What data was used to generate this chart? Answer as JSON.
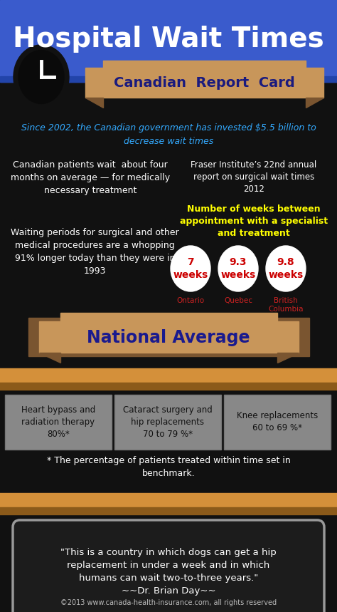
{
  "title": "Hospital Wait Times",
  "bg_top_color": "#3a5bcc",
  "bg_bottom_color": "#111111",
  "banner1_text": "Canadian  Report  Card",
  "banner1_color": "#c8965a",
  "banner1_dark": "#7a5530",
  "subtitle_text": "Since 2002, the Canadian government has invested $5.5 billion to\ndecrease wait times",
  "left_text1": "Canadian patients wait  about four\nmonths on average — for medically\nnecessary treatment",
  "left_text2": "Waiting periods for surgical and other\nmedical procedures are a whopping\n91% longer today than they were in\n1993",
  "right_header": "Fraser Institute’s 22nd annual\nreport on surgical wait times\n2012",
  "right_highlight": "Number of weeks between\nappointment with a specialist\nand treatment",
  "circles": [
    {
      "value": "7\nweeks",
      "label": "Ontario"
    },
    {
      "value": "9.3\nweeks",
      "label": "Quebec"
    },
    {
      "value": "9.8\nweeks",
      "label": "British\nColumbia"
    }
  ],
  "banner2_text": "National Average",
  "banner2_color": "#c8965a",
  "banner2_dark": "#7a5530",
  "shelf_color": "#d4903a",
  "shelf_shadow": "#8b5a1a",
  "boxes": [
    {
      "text": "Heart bypass and\nradiation therapy\n80%*"
    },
    {
      "text": "Cataract surgery and\nhip replacements\n70 to 79 %*"
    },
    {
      "text": "Knee replacements\n60 to 69 %*"
    }
  ],
  "footnote": "* The percentage of patients treated within time set in\nbenchmark.",
  "quote": "\"This is a country in which dogs can get a hip\nreplacement in under a week and in which\nhumans can wait two-to-three years.\"\n~~Dr. Brian Day~~",
  "copyright": "©2013 www.canada-health-insurance.com, all rights reserved"
}
